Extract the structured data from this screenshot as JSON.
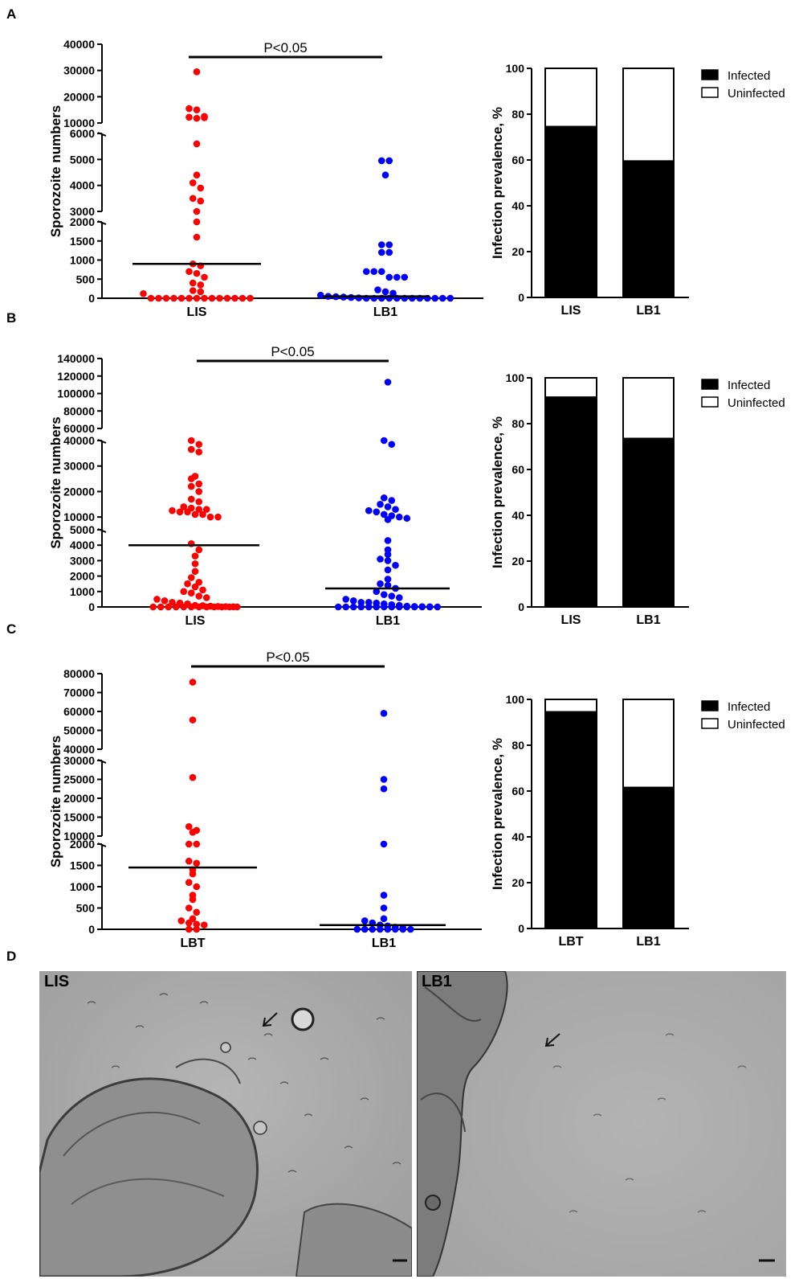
{
  "colors": {
    "red": "#ff0000",
    "blue": "#0000ff",
    "black": "#000000",
    "white": "#ffffff",
    "photo_bg": "#a9a9a9"
  },
  "panels": {
    "a": "A",
    "b": "B",
    "c": "C",
    "d": "D"
  },
  "chart_data": [
    {
      "id": "A-dot",
      "type": "scatter",
      "title": "",
      "ylabel": "Sporozoite numbers",
      "significance": "P<0.05",
      "categories": [
        "LIS",
        "LB1"
      ],
      "segments": [
        {
          "lo": 0,
          "hi": 2000,
          "ticks": [
            0,
            500,
            1000,
            1500,
            2000
          ]
        },
        {
          "lo": 3000,
          "hi": 6000,
          "ticks": [
            3000,
            4000,
            5000,
            6000
          ]
        },
        {
          "lo": 10000,
          "hi": 40000,
          "ticks": [
            10000,
            20000,
            30000,
            40000
          ]
        }
      ],
      "series": [
        {
          "name": "LIS",
          "color": "red",
          "median": 900,
          "values": [
            29500,
            15500,
            15000,
            12500,
            12200,
            11800,
            12000,
            5600,
            4400,
            4100,
            3900,
            3500,
            3400,
            3000,
            2700,
            1600,
            900,
            850,
            700,
            650,
            550,
            400,
            350,
            200,
            170,
            120,
            0,
            0,
            0,
            0,
            0,
            0,
            0,
            0,
            0,
            0,
            0,
            0,
            0,
            0
          ]
        },
        {
          "name": "LB1",
          "color": "blue",
          "median": 50,
          "values": [
            4950,
            4950,
            4400,
            1400,
            1400,
            1200,
            1200,
            700,
            700,
            700,
            550,
            550,
            550,
            220,
            170,
            130,
            80,
            50,
            40,
            30,
            20,
            10,
            0,
            0,
            0,
            0,
            0,
            0,
            0,
            0,
            0,
            0,
            0,
            0
          ]
        }
      ]
    },
    {
      "id": "A-bar",
      "type": "bar",
      "ylabel": "Infection prevalence, %",
      "ylim": [
        0,
        100
      ],
      "categories": [
        "LIS",
        "LB1"
      ],
      "infected": [
        74.5,
        59.5
      ],
      "legend": [
        "Infected",
        "Uninfected"
      ]
    },
    {
      "id": "B-dot",
      "type": "scatter",
      "title": "",
      "ylabel": "Sporozoite numbers",
      "significance": "P<0.05",
      "categories": [
        "LIS",
        "LB1"
      ],
      "segments": [
        {
          "lo": 0,
          "hi": 5000,
          "ticks": [
            0,
            1000,
            2000,
            3000,
            4000,
            5000
          ]
        },
        {
          "lo": 5000,
          "hi": 40000,
          "ticks": [
            10000,
            20000,
            30000,
            40000
          ]
        },
        {
          "lo": 60000,
          "hi": 140000,
          "ticks": [
            60000,
            80000,
            100000,
            120000,
            140000
          ]
        }
      ],
      "series": [
        {
          "name": "LIS",
          "color": "red",
          "median": 4000,
          "values": [
            55000,
            38500,
            36500,
            35500,
            26000,
            25000,
            23000,
            22000,
            20000,
            17000,
            16000,
            14000,
            13500,
            13000,
            13000,
            12500,
            12000,
            12000,
            11000,
            11000,
            10000,
            10000,
            4100,
            3700,
            3300,
            2800,
            2300,
            1900,
            1600,
            1500,
            1300,
            1100,
            1000,
            900,
            700,
            600,
            500,
            400,
            300,
            250,
            200,
            100,
            80,
            50,
            30,
            20,
            10,
            0,
            0,
            0,
            0,
            0,
            0,
            0,
            0,
            0,
            0,
            0,
            0
          ]
        },
        {
          "name": "LB1",
          "color": "blue",
          "median": 1200,
          "values": [
            113000,
            52000,
            38500,
            17500,
            16500,
            15000,
            14000,
            13000,
            12500,
            12000,
            11000,
            10500,
            10000,
            9500,
            9000,
            4300,
            3700,
            3400,
            3100,
            3000,
            2700,
            2400,
            1800,
            1500,
            1400,
            1200,
            1000,
            800,
            700,
            600,
            500,
            400,
            300,
            300,
            250,
            200,
            150,
            100,
            50,
            30,
            20,
            10,
            0,
            0,
            0,
            0,
            0,
            0,
            0,
            0,
            0,
            0,
            0,
            0,
            0,
            0
          ]
        }
      ]
    },
    {
      "id": "B-bar",
      "type": "bar",
      "ylabel": "Infection prevalence, %",
      "ylim": [
        0,
        100
      ],
      "categories": [
        "LIS",
        "LB1"
      ],
      "infected": [
        91.5,
        73.5
      ],
      "legend": [
        "Infected",
        "Uninfected"
      ]
    },
    {
      "id": "C-dot",
      "type": "scatter",
      "title": "",
      "ylabel": "Sporozoite numbers",
      "significance": "P<0.05",
      "categories": [
        "LBT",
        "LB1"
      ],
      "segments": [
        {
          "lo": 0,
          "hi": 2000,
          "ticks": [
            0,
            500,
            1000,
            1500,
            2000
          ]
        },
        {
          "lo": 10000,
          "hi": 30000,
          "ticks": [
            10000,
            15000,
            20000,
            25000,
            30000
          ]
        },
        {
          "lo": 40000,
          "hi": 80000,
          "ticks": [
            40000,
            50000,
            60000,
            70000,
            80000
          ]
        }
      ],
      "series": [
        {
          "name": "LBT",
          "color": "red",
          "median": 1450,
          "values": [
            75500,
            55500,
            25500,
            12500,
            11500,
            11000,
            8500,
            8500,
            1600,
            1550,
            1400,
            1300,
            1100,
            1000,
            800,
            700,
            500,
            400,
            250,
            200,
            150,
            120,
            100,
            0,
            0
          ]
        },
        {
          "name": "LB1",
          "color": "blue",
          "median": 100,
          "values": [
            59000,
            25000,
            22500,
            9500,
            800,
            500,
            250,
            200,
            150,
            100,
            80,
            50,
            30,
            0,
            0,
            0,
            0,
            0,
            0,
            0,
            0
          ]
        }
      ]
    },
    {
      "id": "C-bar",
      "type": "bar",
      "ylabel": "Infection prevalence, %",
      "ylim": [
        0,
        100
      ],
      "categories": [
        "LBT",
        "LB1"
      ],
      "infected": [
        94.5,
        61.5
      ],
      "legend": [
        "Infected",
        "Uninfected"
      ]
    }
  ],
  "photos": [
    {
      "label": "LIS",
      "arrow": "arrow-icon",
      "scale": "scale-bar"
    },
    {
      "label": "LB1",
      "arrow": "arrow-icon",
      "scale": "scale-bar"
    }
  ]
}
